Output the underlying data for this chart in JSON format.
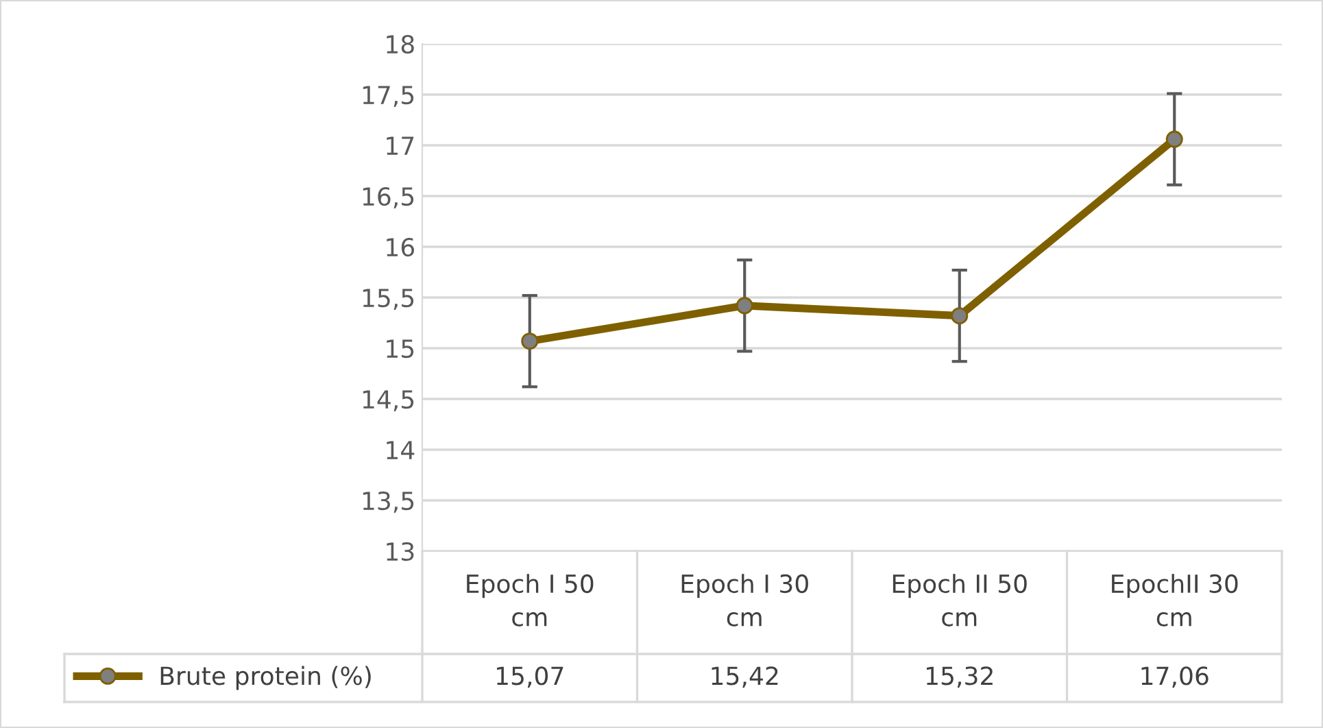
{
  "chart_data": {
    "type": "line",
    "categories": [
      "Epoch I 50 cm",
      "Epoch I 30 cm",
      "Epoch II 50 cm",
      "EpochII 30 cm"
    ],
    "series": [
      {
        "name": "Brute protein (%)",
        "color": "#7f6000",
        "values": [
          15.07,
          15.42,
          15.32,
          17.06
        ],
        "errors": [
          0.45,
          0.45,
          0.45,
          0.45
        ],
        "value_labels": [
          "15,07",
          "15,42",
          "15,32",
          "17,06"
        ]
      }
    ],
    "ylim": [
      13,
      18
    ],
    "yticks": [
      {
        "value": 13,
        "label": "13"
      },
      {
        "value": 13.5,
        "label": "13,5"
      },
      {
        "value": 14,
        "label": "14"
      },
      {
        "value": 14.5,
        "label": "14,5"
      },
      {
        "value": 15,
        "label": "15"
      },
      {
        "value": 15.5,
        "label": "15,5"
      },
      {
        "value": 16,
        "label": "16"
      },
      {
        "value": 16.5,
        "label": "16,5"
      },
      {
        "value": 17,
        "label": "17"
      },
      {
        "value": 17.5,
        "label": "17,5"
      },
      {
        "value": 18,
        "label": "18"
      }
    ],
    "grid": "y",
    "legend": "bottom",
    "marker": "circle",
    "line_style": "solid"
  }
}
